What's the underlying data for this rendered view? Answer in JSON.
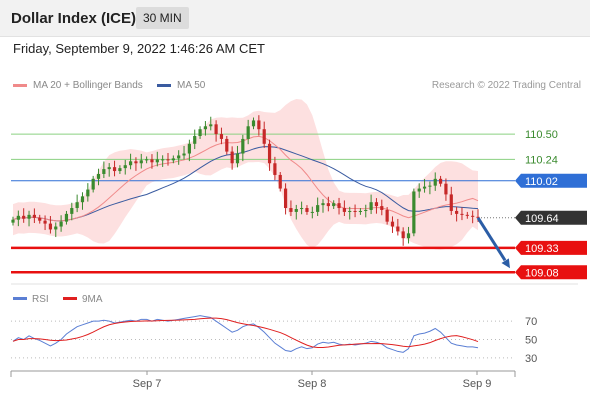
{
  "header": {
    "title": "Dollar Index (ICE)",
    "timeframe": "30 MIN"
  },
  "datetime": "Friday, September 9, 2022 1:46:26 AM CET",
  "legend": {
    "ma20_label": "MA 20 + Bollinger Bands",
    "ma50_label": "MA 50",
    "credit": "Research © 2022 Trading Central"
  },
  "rsi_legend": {
    "rsi_label": "RSI",
    "ma_label": "9MA"
  },
  "colors": {
    "ma20": "#f08a8a",
    "ma50": "#3a5ba0",
    "bands": "#fde0e0",
    "up_candle": "#3a8a2e",
    "down_candle": "#c62828",
    "green_level": "#8ad080",
    "blue_level": "#2f6fd6",
    "red_level": "#e81010",
    "rsi": "#5b7fd4",
    "rsi_ma": "#e02020",
    "arrow": "#2b5da6"
  },
  "chart_data": {
    "type": "candlestick",
    "price_range": [
      108.98,
      110.85
    ],
    "x_labels": [
      "Sep 7",
      "Sep 8",
      "Sep 9"
    ],
    "levels": [
      {
        "label": "110.50",
        "value": 110.5,
        "style": "resistance"
      },
      {
        "label": "110.24",
        "value": 110.24,
        "style": "resistance"
      },
      {
        "label": "110.02",
        "value": 110.02,
        "style": "pivot"
      },
      {
        "label": "109.64",
        "value": 109.64,
        "style": "last"
      },
      {
        "label": "109.33",
        "value": 109.33,
        "style": "support"
      },
      {
        "label": "109.08",
        "value": 109.08,
        "style": "support"
      }
    ],
    "close": [
      109.62,
      109.66,
      109.63,
      109.67,
      109.64,
      109.61,
      109.58,
      109.52,
      109.55,
      109.6,
      109.68,
      109.74,
      109.8,
      109.86,
      109.93,
      110.04,
      110.09,
      110.14,
      110.16,
      110.12,
      110.15,
      110.18,
      110.22,
      110.2,
      110.23,
      110.24,
      110.21,
      110.24,
      110.24,
      110.23,
      110.25,
      110.28,
      110.3,
      110.4,
      110.48,
      110.55,
      110.58,
      110.6,
      110.5,
      110.45,
      110.32,
      110.2,
      110.3,
      110.45,
      110.58,
      110.64,
      110.55,
      110.4,
      110.2,
      110.08,
      109.94,
      109.74,
      109.7,
      109.73,
      109.74,
      109.7,
      109.7,
      109.77,
      109.79,
      109.76,
      109.79,
      109.74,
      109.7,
      109.71,
      109.7,
      109.71,
      109.72,
      109.8,
      109.76,
      109.72,
      109.6,
      109.55,
      109.5,
      109.43,
      109.48,
      109.91,
      109.94,
      109.96,
      109.97,
      110.04,
      109.99,
      109.88,
      109.71,
      109.68,
      109.67,
      109.66,
      109.65,
      109.64
    ],
    "rsi": {
      "ticks": [
        30,
        50,
        70
      ],
      "range": [
        20,
        80
      ],
      "values": [
        48,
        52,
        50,
        54,
        51,
        49,
        46,
        43,
        46,
        50,
        56,
        60,
        64,
        66,
        68,
        70,
        70,
        71,
        70,
        68,
        69,
        70,
        71,
        70,
        72,
        72,
        70,
        72,
        71,
        70,
        71,
        72,
        73,
        74,
        75,
        76,
        75,
        74,
        70,
        66,
        62,
        58,
        60,
        64,
        66,
        67,
        63,
        58,
        52,
        46,
        42,
        38,
        37,
        40,
        42,
        40,
        41,
        45,
        47,
        46,
        47,
        45,
        44,
        45,
        44,
        45,
        46,
        48,
        47,
        45,
        41,
        39,
        37,
        36,
        40,
        54,
        56,
        57,
        59,
        62,
        58,
        52,
        46,
        44,
        43,
        42,
        42,
        41
      ]
    }
  }
}
